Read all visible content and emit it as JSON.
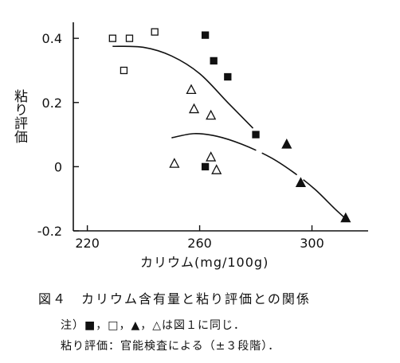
{
  "chart_data": {
    "type": "scatter",
    "ylabel": "粘り評価",
    "xlabel": "カリウム(mg/100g)",
    "xlim": [
      215,
      320
    ],
    "ylim": [
      -0.2,
      0.45
    ],
    "xticks": [
      220,
      260,
      300
    ],
    "xtick_labels": [
      "220",
      "260",
      "300"
    ],
    "yticks": [
      0.4,
      0.2,
      0,
      -0.2
    ],
    "ytick_labels": [
      "0.4",
      "0.2",
      "0",
      "-0.2"
    ],
    "series": [
      {
        "marker": "open-square",
        "points": [
          [
            229,
            0.4
          ],
          [
            235,
            0.4
          ],
          [
            244,
            0.42
          ],
          [
            233,
            0.3
          ]
        ]
      },
      {
        "marker": "filled-square",
        "points": [
          [
            262,
            0.41
          ],
          [
            265,
            0.33
          ],
          [
            270,
            0.28
          ],
          [
            280,
            0.1
          ],
          [
            262,
            0.0
          ]
        ]
      },
      {
        "marker": "open-triangle",
        "points": [
          [
            251,
            0.01
          ],
          [
            257,
            0.24
          ],
          [
            258,
            0.18
          ],
          [
            264,
            0.16
          ],
          [
            264,
            0.03
          ],
          [
            266,
            -0.01
          ]
        ]
      },
      {
        "marker": "filled-triangle",
        "points": [
          [
            291,
            0.07
          ],
          [
            296,
            -0.05
          ],
          [
            312,
            -0.16
          ]
        ]
      }
    ],
    "curves": [
      {
        "style": "solid",
        "points": [
          [
            229,
            0.375
          ],
          [
            240,
            0.372
          ],
          [
            250,
            0.345
          ],
          [
            260,
            0.29
          ],
          [
            270,
            0.2
          ],
          [
            279,
            0.12
          ]
        ]
      },
      {
        "style": "solid-segments",
        "points": [
          [
            250,
            0.09
          ],
          [
            258,
            0.103
          ],
          [
            266,
            0.095
          ],
          [
            275,
            0.07
          ],
          [
            285,
            0.03
          ],
          [
            293,
            -0.015
          ],
          [
            301,
            -0.07
          ],
          [
            308,
            -0.13
          ],
          [
            313,
            -0.17
          ]
        ]
      }
    ],
    "grid": false,
    "legend": "none"
  },
  "caption": "図４　カリウム含有量と粘り評価との関係",
  "note_line1": "注）■，□，▲，△は図１に同じ．",
  "note_line2": "粘り評価：官能検査による（±３段階）．"
}
